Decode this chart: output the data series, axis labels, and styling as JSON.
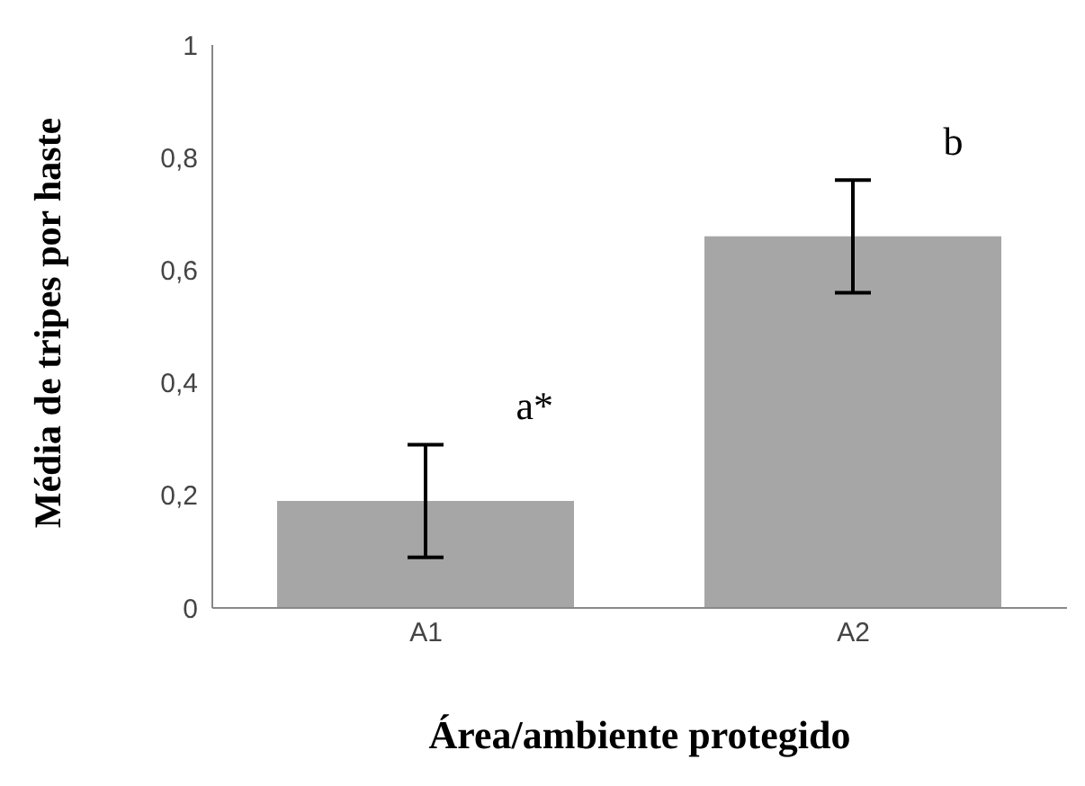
{
  "chart_data": {
    "type": "bar",
    "xlabel": "Área/ambiente protegido",
    "ylabel": "Média de tripes por haste",
    "categories": [
      "A1",
      "A2"
    ],
    "values": [
      0.19,
      0.66
    ],
    "errors": [
      0.1,
      0.1
    ],
    "color": "#a6a6a6",
    "ylim": [
      0,
      1
    ],
    "yticks": [
      0,
      {
        "value": 0.2,
        "label": "0,2"
      },
      {
        "value": 0.4,
        "label": "0,4"
      },
      {
        "value": 0.6,
        "label": "0,6"
      },
      {
        "value": 0.8,
        "label": "0,8"
      },
      1
    ],
    "annotations": [
      "a*",
      "b"
    ],
    "grid": false,
    "legend": false
  }
}
